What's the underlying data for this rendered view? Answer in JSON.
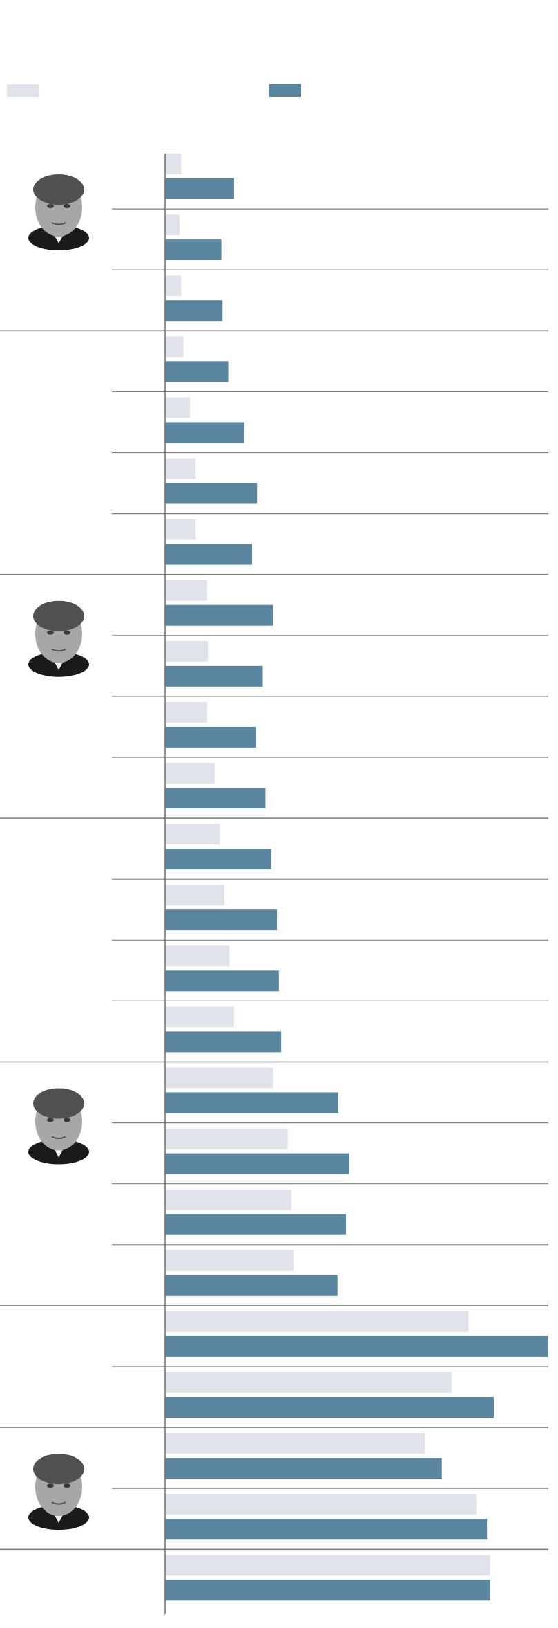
{
  "colors": {
    "light_series": "#e0e3ea",
    "dark_series": "#5b86a0",
    "divider": "#808080",
    "axis": "#6e6e6e"
  },
  "legend": {
    "items": [
      {
        "series": "light_series"
      },
      {
        "series": "dark_series"
      }
    ]
  },
  "portraits": [
    {
      "group": 0,
      "icon": "president-portrait-1-icon"
    },
    {
      "group": 2,
      "icon": "president-portrait-2-icon"
    },
    {
      "group": 4,
      "icon": "president-portrait-3-icon"
    },
    {
      "group": 6,
      "icon": "president-portrait-4-icon"
    }
  ],
  "chart_data": {
    "type": "bar",
    "orientation": "horizontal",
    "grouped_rows": [
      3,
      4,
      4,
      4,
      4,
      2,
      2,
      1
    ],
    "xlim": [
      0,
      100
    ],
    "grid": false,
    "legend_position": "top",
    "series": [
      {
        "key": "light_series",
        "values": [
          4.2,
          3.8,
          4.2,
          4.8,
          6.5,
          8.0,
          8.0,
          11.0,
          11.2,
          11.0,
          13.0,
          14.3,
          15.5,
          16.8,
          18.0,
          28.2,
          32.0,
          33.0,
          33.5,
          79.2,
          74.8,
          67.8,
          81.2,
          84.8
        ]
      },
      {
        "key": "dark_series",
        "values": [
          18.0,
          14.7,
          15.0,
          16.5,
          20.7,
          24.0,
          22.7,
          28.2,
          25.5,
          23.7,
          26.2,
          27.7,
          29.2,
          29.7,
          30.3,
          45.2,
          48.0,
          47.2,
          45.0,
          100.0,
          85.8,
          72.2,
          84.0,
          84.8
        ]
      }
    ]
  }
}
